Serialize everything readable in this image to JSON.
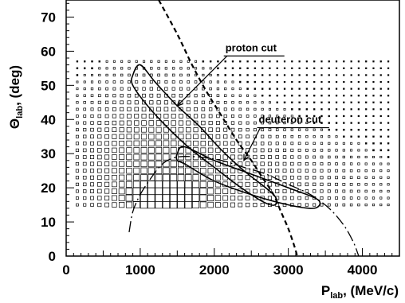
{
  "chart_data": {
    "type": "heatmap",
    "title": "",
    "xlabel": {
      "main": "P",
      "sub": "lab",
      "unit": ", (MeV/c)"
    },
    "ylabel": {
      "main": "Θ",
      "sub": "lab",
      "unit": ", (deg)"
    },
    "xlim": [
      0,
      4500
    ],
    "ylim": [
      0,
      75
    ],
    "x_ticks": [
      0,
      1000,
      2000,
      3000,
      4000
    ],
    "y_ticks": [
      0,
      10,
      20,
      30,
      40,
      50,
      60,
      70
    ],
    "grid": false,
    "legend": "none",
    "density": {
      "x_range": [
        150,
        4350
      ],
      "y_range": [
        15,
        57
      ],
      "x_step": 100,
      "y_step": 2
    },
    "curves": [
      {
        "style": "dashed",
        "points": [
          [
            1250,
            75
          ],
          [
            1500,
            65
          ],
          [
            1700,
            56
          ],
          [
            1900,
            48
          ],
          [
            2100,
            41
          ],
          [
            2300,
            34
          ],
          [
            2500,
            28
          ],
          [
            2650,
            23
          ],
          [
            2800,
            18
          ],
          [
            2900,
            13
          ],
          [
            3000,
            8
          ],
          [
            3080,
            3
          ],
          [
            3120,
            0
          ]
        ]
      },
      {
        "style": "dash-dot",
        "points": [
          [
            850,
            7
          ],
          [
            900,
            13
          ],
          [
            1000,
            18
          ],
          [
            1150,
            23
          ],
          [
            1300,
            27
          ],
          [
            1500,
            29
          ],
          [
            1800,
            29
          ],
          [
            2100,
            28
          ],
          [
            2400,
            26
          ],
          [
            2700,
            24
          ],
          [
            3000,
            21
          ],
          [
            3300,
            18
          ],
          [
            3550,
            14
          ],
          [
            3750,
            9
          ],
          [
            3880,
            4
          ],
          [
            3950,
            0
          ]
        ]
      }
    ],
    "cut_regions": [
      {
        "name": "proton cut",
        "polygon": [
          [
            900,
            53
          ],
          [
            1000,
            56
          ],
          [
            1200,
            51
          ],
          [
            1500,
            44
          ],
          [
            1800,
            38
          ],
          [
            2100,
            31
          ],
          [
            2400,
            25
          ],
          [
            2800,
            18
          ],
          [
            2820,
            15
          ],
          [
            2650,
            16
          ],
          [
            2300,
            21
          ],
          [
            2000,
            26
          ],
          [
            1700,
            31
          ],
          [
            1400,
            37
          ],
          [
            1100,
            44
          ],
          [
            900,
            50
          ]
        ]
      },
      {
        "name": "deuteron cut",
        "polygon": [
          [
            1500,
            30
          ],
          [
            1600,
            32
          ],
          [
            2000,
            28
          ],
          [
            2500,
            24
          ],
          [
            3000,
            20
          ],
          [
            3400,
            16.5
          ],
          [
            3350,
            14
          ],
          [
            3000,
            15
          ],
          [
            2500,
            18
          ],
          [
            2000,
            22
          ],
          [
            1600,
            27
          ],
          [
            1500,
            28
          ]
        ]
      }
    ],
    "annotations": [
      {
        "text": "proton cut",
        "at": [
          2150,
          60
        ],
        "arrow_to": [
          1500,
          44
        ]
      },
      {
        "text": "deuteron cut",
        "at": [
          2600,
          39
        ],
        "arrow_to": [
          2400,
          28
        ]
      }
    ]
  }
}
